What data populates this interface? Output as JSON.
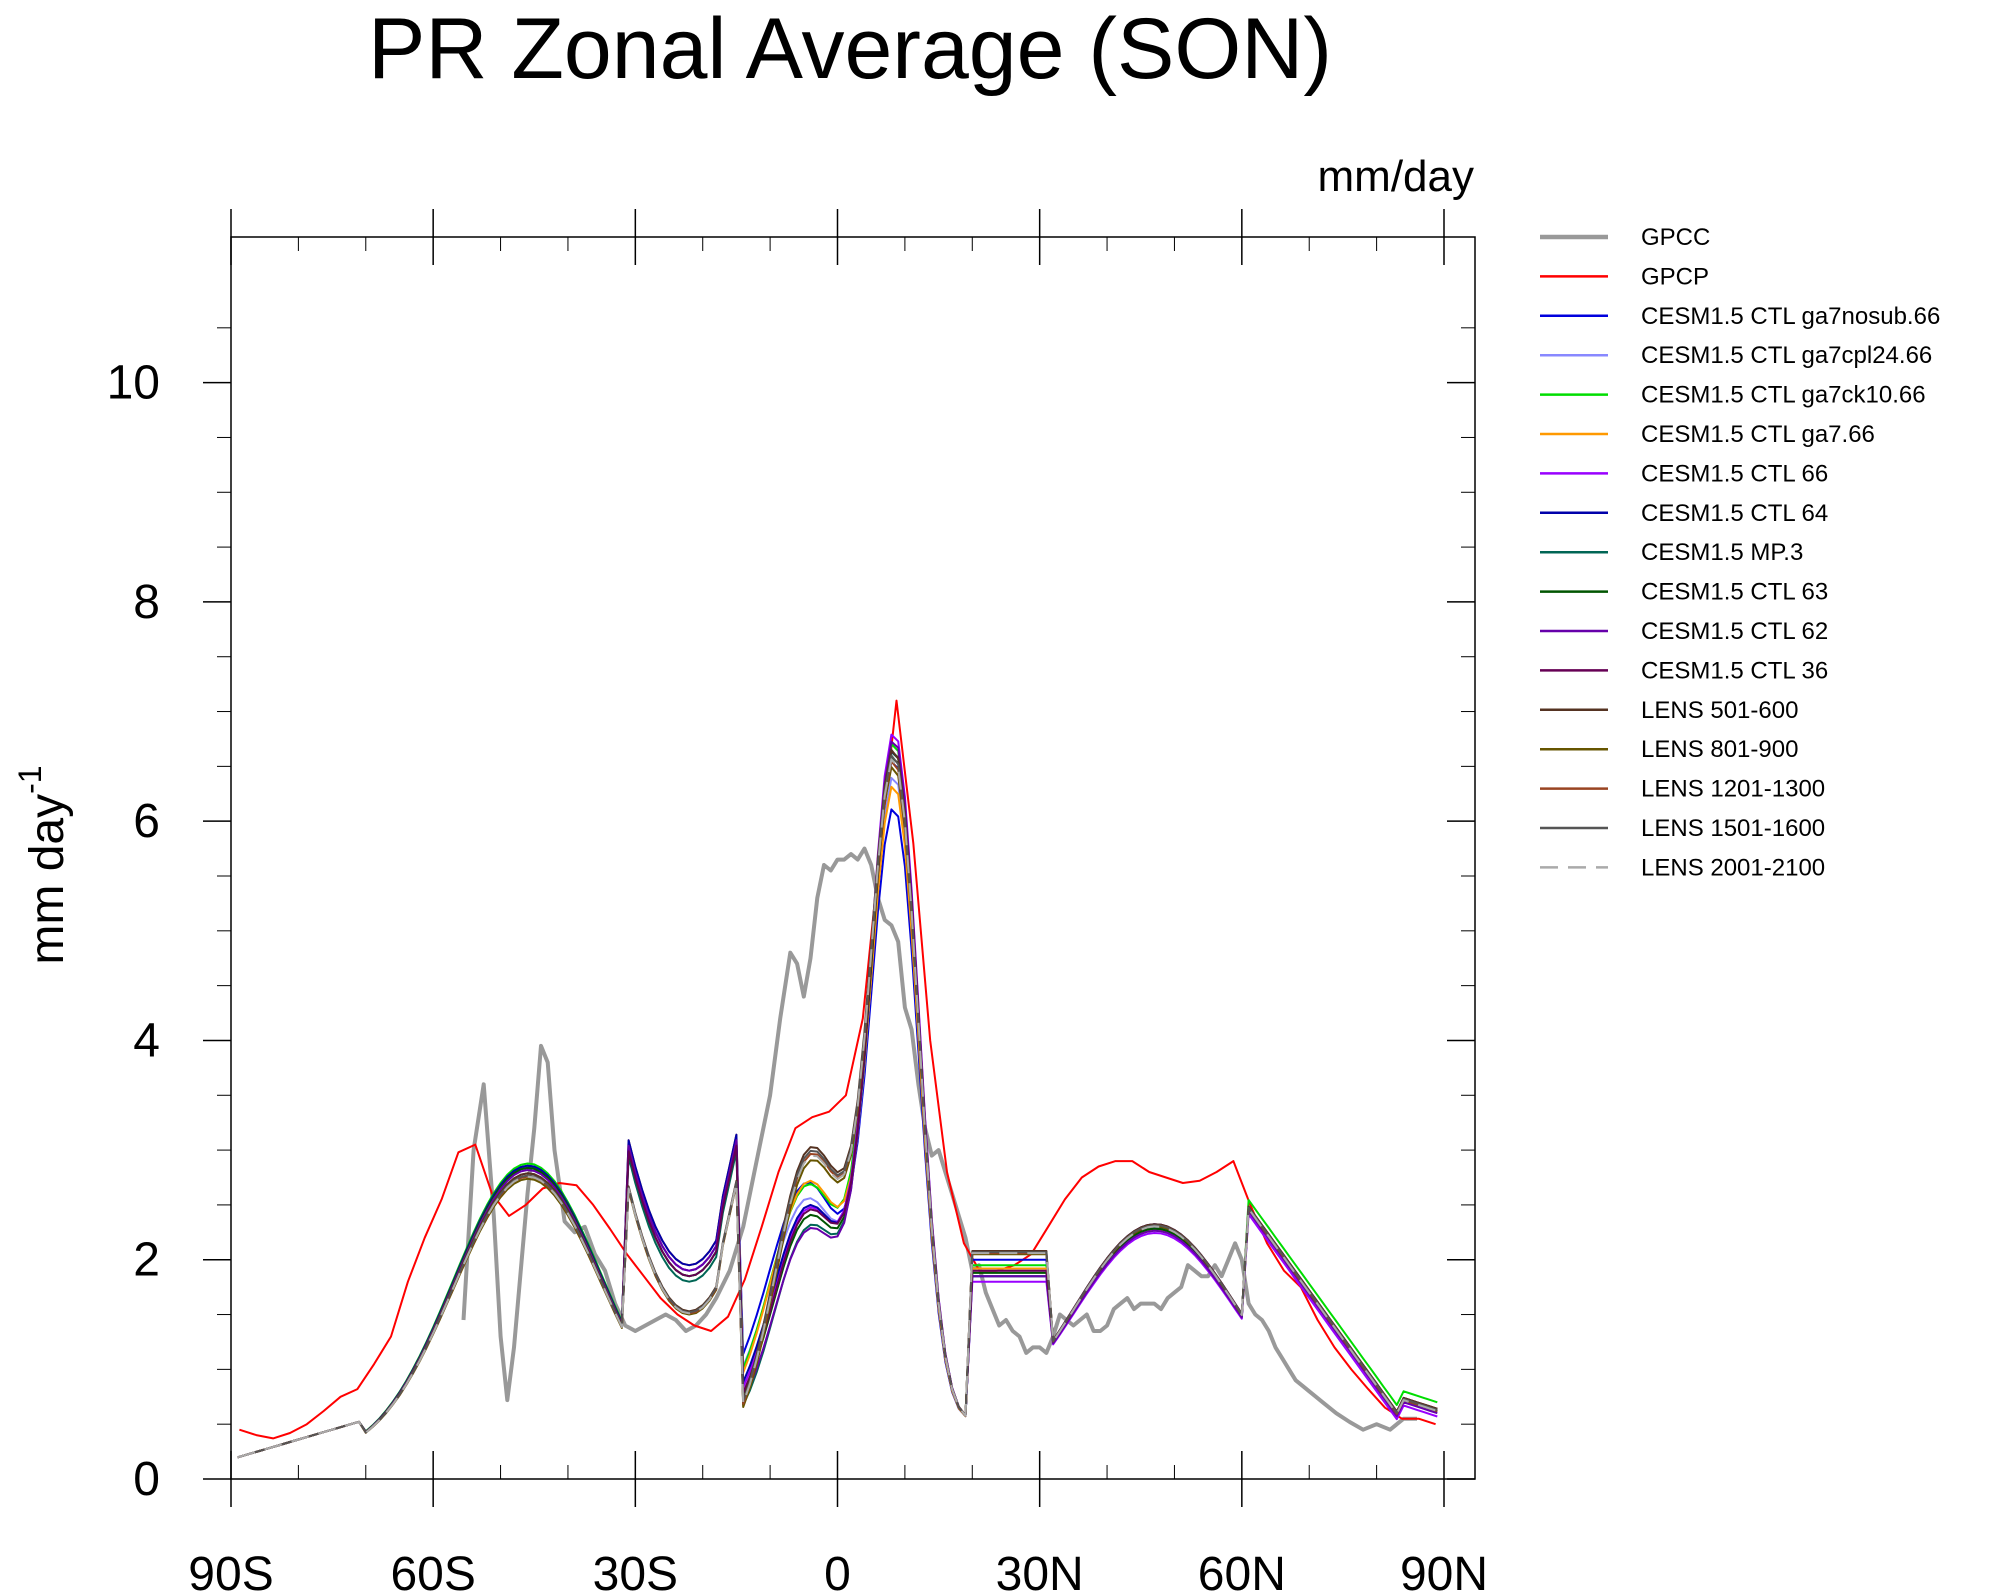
{
  "chart_data": {
    "type": "line",
    "title": "PR Zonal Average (SON)",
    "units_label": "mm/day",
    "ylabel": "mm day",
    "ylabel_superscript": "-1",
    "xlabel": "",
    "xlim": [
      -90,
      90
    ],
    "ylim": [
      0,
      11
    ],
    "x_ticks": [
      {
        "value": -90,
        "label": "90S"
      },
      {
        "value": -60,
        "label": "60S"
      },
      {
        "value": -30,
        "label": "30S"
      },
      {
        "value": 0,
        "label": "0"
      },
      {
        "value": 30,
        "label": "30N"
      },
      {
        "value": 60,
        "label": "60N"
      },
      {
        "value": 90,
        "label": "90N"
      }
    ],
    "y_ticks": [
      {
        "value": 0,
        "label": "0"
      },
      {
        "value": 2,
        "label": "2"
      },
      {
        "value": 4,
        "label": "4"
      },
      {
        "value": 6,
        "label": "6"
      },
      {
        "value": 8,
        "label": "8"
      },
      {
        "value": 10,
        "label": "10"
      }
    ],
    "legend_position": "right",
    "series": [
      {
        "name": "GPCC",
        "color": "#999999",
        "width": 4,
        "dash": "",
        "points": [
          [
            -55.5,
            1.45
          ],
          [
            -54,
            3.0
          ],
          [
            -52.5,
            3.6
          ],
          [
            -51,
            2.4
          ],
          [
            -50,
            1.3
          ],
          [
            -49,
            0.72
          ],
          [
            -48,
            1.2
          ],
          [
            -46,
            2.6
          ],
          [
            -45,
            3.2
          ],
          [
            -44,
            3.95
          ],
          [
            -43,
            3.8
          ],
          [
            -42,
            3.0
          ],
          [
            -40.5,
            2.35
          ],
          [
            -39,
            2.25
          ],
          [
            -37.5,
            2.3
          ],
          [
            -36,
            2.05
          ],
          [
            -34.5,
            1.9
          ],
          [
            -33,
            1.6
          ],
          [
            -31.5,
            1.4
          ],
          [
            -30,
            1.35
          ],
          [
            -28.5,
            1.4
          ],
          [
            -27,
            1.45
          ],
          [
            -25.5,
            1.5
          ],
          [
            -24,
            1.45
          ],
          [
            -22.5,
            1.35
          ],
          [
            -21,
            1.4
          ],
          [
            -19.5,
            1.5
          ],
          [
            -18,
            1.65
          ],
          [
            -16,
            1.9
          ],
          [
            -14,
            2.3
          ],
          [
            -12,
            2.9
          ],
          [
            -10,
            3.5
          ],
          [
            -8.5,
            4.2
          ],
          [
            -7,
            4.8
          ],
          [
            -6,
            4.7
          ],
          [
            -5,
            4.4
          ],
          [
            -4,
            4.75
          ],
          [
            -3,
            5.3
          ],
          [
            -2,
            5.6
          ],
          [
            -1,
            5.55
          ],
          [
            0,
            5.65
          ],
          [
            1,
            5.65
          ],
          [
            2,
            5.7
          ],
          [
            3,
            5.65
          ],
          [
            4,
            5.75
          ],
          [
            5,
            5.6
          ],
          [
            6,
            5.3
          ],
          [
            7,
            5.1
          ],
          [
            8,
            5.05
          ],
          [
            9,
            4.9
          ],
          [
            10,
            4.3
          ],
          [
            11,
            4.1
          ],
          [
            12,
            3.6
          ],
          [
            13,
            3.2
          ],
          [
            14,
            2.95
          ],
          [
            15,
            3.0
          ],
          [
            16,
            2.8
          ],
          [
            17,
            2.6
          ],
          [
            18,
            2.4
          ],
          [
            19,
            2.2
          ],
          [
            20,
            1.9
          ],
          [
            21,
            1.95
          ],
          [
            22,
            1.7
          ],
          [
            23,
            1.55
          ],
          [
            24,
            1.4
          ],
          [
            25,
            1.45
          ],
          [
            26,
            1.35
          ],
          [
            27,
            1.3
          ],
          [
            28,
            1.15
          ],
          [
            29,
            1.2
          ],
          [
            30,
            1.2
          ],
          [
            31,
            1.15
          ],
          [
            32,
            1.3
          ],
          [
            33,
            1.5
          ],
          [
            34,
            1.45
          ],
          [
            35,
            1.4
          ],
          [
            36,
            1.45
          ],
          [
            37,
            1.5
          ],
          [
            38,
            1.35
          ],
          [
            39,
            1.35
          ],
          [
            40,
            1.4
          ],
          [
            41,
            1.55
          ],
          [
            42,
            1.6
          ],
          [
            43,
            1.65
          ],
          [
            44,
            1.55
          ],
          [
            45,
            1.6
          ],
          [
            46,
            1.6
          ],
          [
            47,
            1.6
          ],
          [
            48,
            1.55
          ],
          [
            49,
            1.65
          ],
          [
            50,
            1.7
          ],
          [
            51,
            1.75
          ],
          [
            52,
            1.95
          ],
          [
            53,
            1.9
          ],
          [
            54,
            1.85
          ],
          [
            55,
            1.85
          ],
          [
            56,
            1.95
          ],
          [
            57,
            1.85
          ],
          [
            58,
            2.0
          ],
          [
            59,
            2.15
          ],
          [
            60,
            2.0
          ],
          [
            61,
            1.6
          ],
          [
            62,
            1.5
          ],
          [
            63,
            1.45
          ],
          [
            64,
            1.35
          ],
          [
            65,
            1.2
          ],
          [
            66,
            1.1
          ],
          [
            67,
            1.0
          ],
          [
            68,
            0.9
          ],
          [
            69,
            0.85
          ],
          [
            70,
            0.8
          ],
          [
            72,
            0.7
          ],
          [
            74,
            0.6
          ],
          [
            76,
            0.52
          ],
          [
            78,
            0.45
          ],
          [
            80,
            0.5
          ],
          [
            82,
            0.45
          ],
          [
            84,
            0.55
          ],
          [
            86,
            0.55
          ]
        ]
      },
      {
        "name": "GPCP",
        "color": "#ff0000",
        "width": 2,
        "dash": "",
        "points": [
          [
            -88.75,
            0.45
          ],
          [
            -86.25,
            0.4
          ],
          [
            -83.75,
            0.37
          ],
          [
            -81.25,
            0.42
          ],
          [
            -78.75,
            0.5
          ],
          [
            -76.25,
            0.62
          ],
          [
            -73.75,
            0.75
          ],
          [
            -71.25,
            0.82
          ],
          [
            -68.75,
            1.05
          ],
          [
            -66.25,
            1.3
          ],
          [
            -63.75,
            1.8
          ],
          [
            -61.25,
            2.2
          ],
          [
            -58.75,
            2.55
          ],
          [
            -56.25,
            2.98
          ],
          [
            -53.75,
            3.05
          ],
          [
            -51.25,
            2.6
          ],
          [
            -48.75,
            2.4
          ],
          [
            -46.25,
            2.5
          ],
          [
            -43.75,
            2.65
          ],
          [
            -41.25,
            2.7
          ],
          [
            -38.75,
            2.68
          ],
          [
            -36.25,
            2.5
          ],
          [
            -33.75,
            2.28
          ],
          [
            -31.25,
            2.05
          ],
          [
            -28.75,
            1.85
          ],
          [
            -26.25,
            1.65
          ],
          [
            -23.75,
            1.5
          ],
          [
            -21.25,
            1.4
          ],
          [
            -18.75,
            1.35
          ],
          [
            -16.25,
            1.48
          ],
          [
            -13.75,
            1.82
          ],
          [
            -11.25,
            2.3
          ],
          [
            -8.75,
            2.8
          ],
          [
            -6.25,
            3.2
          ],
          [
            -3.75,
            3.3
          ],
          [
            -1.25,
            3.35
          ],
          [
            1.25,
            3.5
          ],
          [
            3.75,
            4.2
          ],
          [
            6.25,
            5.7
          ],
          [
            8.75,
            7.1
          ],
          [
            11.25,
            5.8
          ],
          [
            13.75,
            4.0
          ],
          [
            16.25,
            2.8
          ],
          [
            18.75,
            2.15
          ],
          [
            21.25,
            1.88
          ],
          [
            23.75,
            1.9
          ],
          [
            26.25,
            1.95
          ],
          [
            28.75,
            2.05
          ],
          [
            31.25,
            2.3
          ],
          [
            33.75,
            2.55
          ],
          [
            36.25,
            2.75
          ],
          [
            38.75,
            2.85
          ],
          [
            41.25,
            2.9
          ],
          [
            43.75,
            2.9
          ],
          [
            46.25,
            2.8
          ],
          [
            48.75,
            2.75
          ],
          [
            51.25,
            2.7
          ],
          [
            53.75,
            2.72
          ],
          [
            56.25,
            2.8
          ],
          [
            58.75,
            2.9
          ],
          [
            61.25,
            2.5
          ],
          [
            63.75,
            2.15
          ],
          [
            66.25,
            1.9
          ],
          [
            68.75,
            1.75
          ],
          [
            71.25,
            1.45
          ],
          [
            73.75,
            1.2
          ],
          [
            76.25,
            1.0
          ],
          [
            78.75,
            0.82
          ],
          [
            81.25,
            0.65
          ],
          [
            83.75,
            0.55
          ],
          [
            86.25,
            0.55
          ],
          [
            88.75,
            0.5
          ]
        ]
      },
      {
        "name": "CESM1.5 CTL ga7nosub.66",
        "color": "#0000dd",
        "width": 2,
        "dash": "",
        "model": {
          "sp": 2.92,
          "eq": 3.4,
          "sd": 2.05,
          "itcz": 8.4,
          "npf": 2.2,
          "nmid": 2.8,
          "ar": 2.68,
          "pole": 0.6,
          "sh": 0.4
        }
      },
      {
        "name": "CESM1.5 CTL ga7cpl24.66",
        "color": "#8888ff",
        "width": 2,
        "dash": "",
        "model": {
          "sp": 2.9,
          "eq": 3.3,
          "sd": 2.1,
          "itcz": 8.7,
          "npf": 2.1,
          "nmid": 2.78,
          "ar": 2.65,
          "pole": 0.62,
          "sh": 0.3
        }
      },
      {
        "name": "CESM1.5 CTL ga7ck10.66",
        "color": "#00dd00",
        "width": 2,
        "dash": "",
        "model": {
          "sp": 2.94,
          "eq": 3.45,
          "sd": 2.0,
          "itcz": 9.0,
          "npf": 2.15,
          "nmid": 2.78,
          "ar": 2.7,
          "pole": 0.68,
          "sh": 0.25
        }
      },
      {
        "name": "CESM1.5 CTL ga7.66",
        "color": "#ff9900",
        "width": 2,
        "dash": "",
        "model": {
          "sp": 2.9,
          "eq": 3.5,
          "sd": 2.1,
          "itcz": 8.6,
          "npf": 2.12,
          "nmid": 2.75,
          "ar": 2.66,
          "pole": 0.62,
          "sh": 0.2
        }
      },
      {
        "name": "CESM1.5 CTL 66",
        "color": "#9900ff",
        "width": 2,
        "dash": "",
        "model": {
          "sp": 2.9,
          "eq": 3.3,
          "sd": 2.05,
          "itcz": 9.1,
          "npf": 2.0,
          "nmid": 2.72,
          "ar": 2.55,
          "pole": 0.55,
          "sh": 0.1
        }
      },
      {
        "name": "CESM1.5 CTL 64",
        "color": "#0000aa",
        "width": 2,
        "dash": "",
        "model": {
          "sp": 2.92,
          "eq": 3.3,
          "sd": 2.1,
          "itcz": 8.85,
          "npf": 2.05,
          "nmid": 2.76,
          "ar": 2.62,
          "pole": 0.6,
          "sh": 0.15
        }
      },
      {
        "name": "CESM1.5 MP.3",
        "color": "#006655",
        "width": 2,
        "dash": "",
        "model": {
          "sp": 2.9,
          "eq": 3.2,
          "sd": 1.95,
          "itcz": 8.95,
          "npf": 2.05,
          "nmid": 2.78,
          "ar": 2.62,
          "pole": 0.6,
          "sh": -0.05
        }
      },
      {
        "name": "CESM1.5 CTL 63",
        "color": "#005500",
        "width": 2,
        "dash": "",
        "model": {
          "sp": 2.9,
          "eq": 3.25,
          "sd": 2.0,
          "itcz": 8.9,
          "npf": 2.08,
          "nmid": 2.76,
          "ar": 2.64,
          "pole": 0.6,
          "sh": 0.05
        }
      },
      {
        "name": "CESM1.5 CTL 62",
        "color": "#6600aa",
        "width": 2,
        "dash": "",
        "model": {
          "sp": 2.88,
          "eq": 3.15,
          "sd": 2.05,
          "itcz": 9.05,
          "npf": 2.05,
          "nmid": 2.74,
          "ar": 2.6,
          "pole": 0.58,
          "sh": 0.0
        }
      },
      {
        "name": "CESM1.5 CTL 36",
        "color": "#660055",
        "width": 2,
        "dash": "",
        "model": {
          "sp": 2.85,
          "eq": 3.3,
          "sd": 2.0,
          "itcz": 8.95,
          "npf": 2.1,
          "nmid": 2.8,
          "ar": 2.68,
          "pole": 0.62,
          "sh": 0.05
        }
      },
      {
        "name": "LENS 501-600",
        "color": "#553322",
        "width": 2,
        "dash": "",
        "model": {
          "sp": 2.85,
          "eq": 3.95,
          "sd": 1.68,
          "itcz": 8.9,
          "npf": 2.28,
          "nmid": 2.8,
          "ar": 2.7,
          "pole": 0.62,
          "sh": -0.15,
          "lens": true
        }
      },
      {
        "name": "LENS 801-900",
        "color": "#665500",
        "width": 2,
        "dash": "",
        "model": {
          "sp": 2.8,
          "eq": 3.85,
          "sd": 1.65,
          "itcz": 8.75,
          "npf": 2.25,
          "nmid": 2.78,
          "ar": 2.68,
          "pole": 0.6,
          "sh": -0.2,
          "lens": true
        }
      },
      {
        "name": "LENS 1201-1300",
        "color": "#994422",
        "width": 2,
        "dash": "",
        "model": {
          "sp": 2.82,
          "eq": 3.9,
          "sd": 1.66,
          "itcz": 8.8,
          "npf": 2.26,
          "nmid": 2.79,
          "ar": 2.68,
          "pole": 0.6,
          "sh": -0.18,
          "lens": true
        }
      },
      {
        "name": "LENS 1501-1600",
        "color": "#555555",
        "width": 2,
        "dash": "",
        "model": {
          "sp": 2.83,
          "eq": 3.92,
          "sd": 1.67,
          "itcz": 8.85,
          "npf": 2.27,
          "nmid": 2.79,
          "ar": 2.69,
          "pole": 0.61,
          "sh": -0.16,
          "lens": true
        }
      },
      {
        "name": "LENS 2001-2100",
        "color": "#aaaaaa",
        "width": 2,
        "dash": "18,10",
        "model": {
          "sp": 2.82,
          "eq": 3.88,
          "sd": 1.66,
          "itcz": 8.82,
          "npf": 2.26,
          "nmid": 2.78,
          "ar": 2.68,
          "pole": 0.6,
          "sh": -0.17,
          "lens": true
        }
      }
    ]
  }
}
